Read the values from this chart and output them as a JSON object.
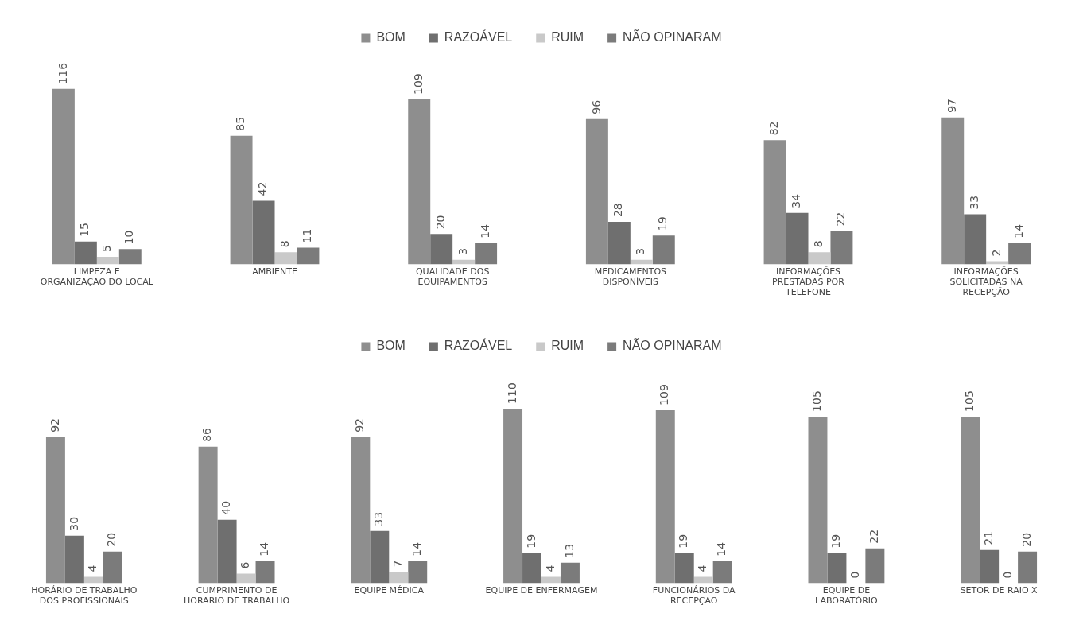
{
  "chart_data": [
    {
      "type": "bar",
      "categories": [
        "LIMPEZA E ORGANIZAÇÃO DO LOCAL",
        "AMBIENTE",
        "QUALIDADE DOS EQUIPAMENTOS",
        "MEDICAMENTOS DISPONÍVEIS",
        "INFORMAÇÕES PRESTADAS POR TELEFONE",
        "INFORMAÇÕES SOLICITADAS NA RECEPÇÃO"
      ],
      "series": [
        {
          "name": "BOM",
          "color": "#8e8e8e",
          "values": [
            116,
            85,
            109,
            96,
            82,
            97
          ]
        },
        {
          "name": "RAZOÁVEL",
          "color": "#6f6f6f",
          "values": [
            15,
            42,
            20,
            28,
            34,
            33
          ]
        },
        {
          "name": "RUIM",
          "color": "#c9c9c9",
          "values": [
            5,
            8,
            3,
            3,
            8,
            2
          ]
        },
        {
          "name": "NÃO OPINARAM",
          "color": "#7b7b7b",
          "values": [
            10,
            11,
            14,
            19,
            22,
            14
          ]
        }
      ],
      "data_labels": true,
      "grid": false,
      "legend": "top",
      "tick_labels": "x"
    },
    {
      "type": "bar",
      "categories": [
        "HORÁRIO DE TRABALHO DOS PROFISSIONAIS",
        "CUMPRIMENTO DE HORARIO DE TRABALHO",
        "EQUIPE MÉDICA",
        "EQUIPE DE ENFERMAGEM",
        "FUNCIONÁRIOS DA RECEPÇÃO",
        "EQUIPE DE LABORATÓRIO",
        "SETOR DE RAIO X"
      ],
      "series": [
        {
          "name": "BOM",
          "color": "#8e8e8e",
          "values": [
            92,
            86,
            92,
            110,
            109,
            105,
            105
          ]
        },
        {
          "name": "RAZOÁVEL",
          "color": "#6f6f6f",
          "values": [
            30,
            40,
            33,
            19,
            19,
            19,
            21
          ]
        },
        {
          "name": "RUIM",
          "color": "#c9c9c9",
          "values": [
            4,
            6,
            7,
            4,
            4,
            0,
            0
          ]
        },
        {
          "name": "NÃO OPINARAM",
          "color": "#7b7b7b",
          "values": [
            20,
            14,
            14,
            13,
            14,
            22,
            20
          ]
        }
      ],
      "data_labels": true,
      "grid": false,
      "legend": "top",
      "tick_labels": "x"
    }
  ]
}
